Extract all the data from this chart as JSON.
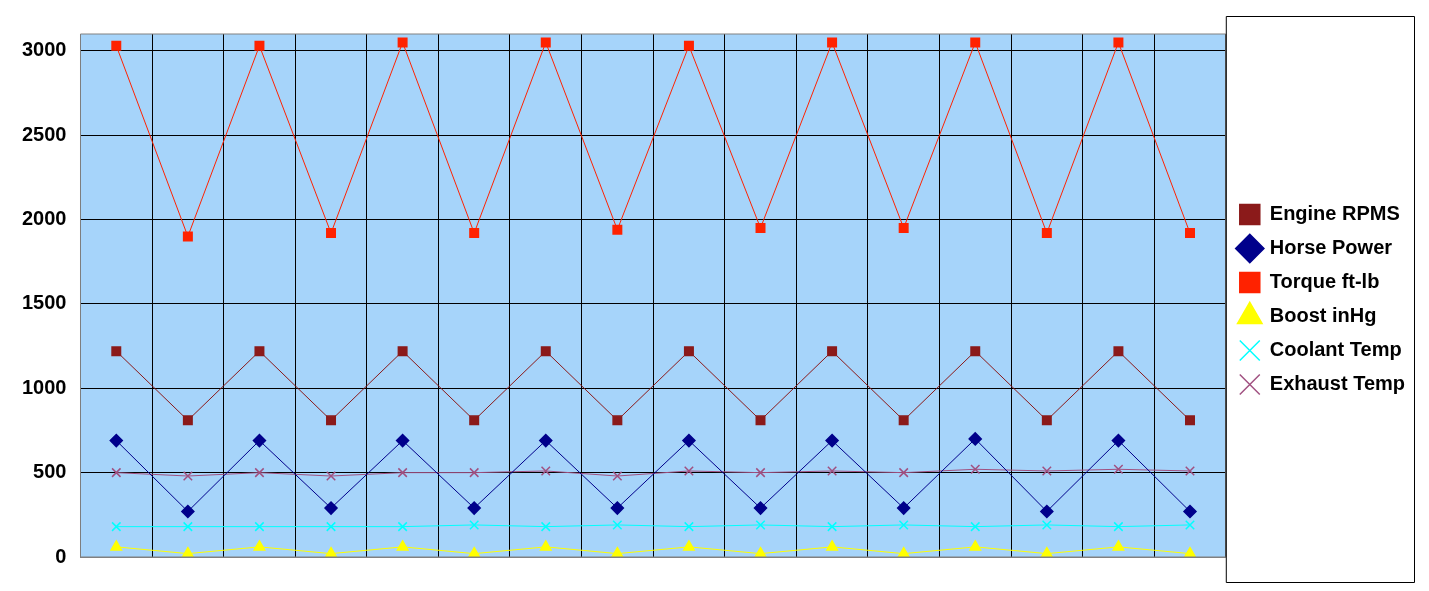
{
  "chart_data": {
    "type": "line",
    "categories": [
      null,
      null,
      null,
      null,
      null,
      null,
      null,
      null,
      null,
      null,
      null,
      null,
      null,
      null,
      null,
      null
    ],
    "ylim": [
      0,
      3100
    ],
    "yticks": [
      0,
      500,
      1000,
      1500,
      2000,
      2500,
      3000
    ],
    "grid": true,
    "legend": "right",
    "tick_labels": "y",
    "series": [
      {
        "name": "Engine RPMS",
        "color": "#8b1a1a",
        "marker": "square",
        "values": [
          1220,
          810,
          1220,
          810,
          1220,
          810,
          1220,
          810,
          1220,
          810,
          1220,
          810,
          1220,
          810,
          1220,
          810
        ]
      },
      {
        "name": "Horse Power",
        "color": "#00008b",
        "marker": "diamond",
        "values": [
          690,
          270,
          690,
          290,
          690,
          290,
          690,
          290,
          690,
          290,
          690,
          290,
          700,
          270,
          690,
          270
        ]
      },
      {
        "name": "Torque ft-lb",
        "color": "#ff2200",
        "marker": "square",
        "values": [
          3030,
          1900,
          3030,
          1920,
          3050,
          1920,
          3050,
          1940,
          3030,
          1950,
          3050,
          1950,
          3050,
          1920,
          3050,
          1920
        ]
      },
      {
        "name": "Boost inHg",
        "color": "#ffff00",
        "marker": "triangle",
        "values": [
          60,
          20,
          60,
          20,
          60,
          20,
          60,
          20,
          60,
          20,
          60,
          20,
          60,
          20,
          60,
          20
        ]
      },
      {
        "name": "Coolant Temp",
        "color": "#00ffff",
        "marker": "cross",
        "values": [
          180,
          180,
          180,
          180,
          180,
          190,
          180,
          190,
          180,
          190,
          180,
          190,
          180,
          190,
          180,
          190
        ]
      },
      {
        "name": "Exhaust Temp",
        "color": "#a05080",
        "marker": "cross",
        "values": [
          500,
          480,
          500,
          480,
          500,
          500,
          510,
          480,
          510,
          500,
          510,
          500,
          520,
          510,
          520,
          510
        ]
      }
    ]
  }
}
